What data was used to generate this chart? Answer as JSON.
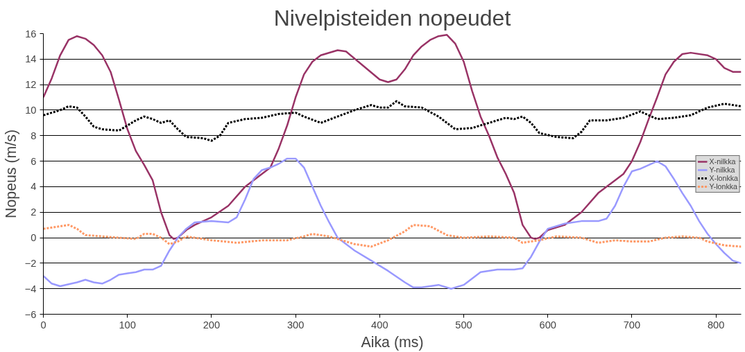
{
  "chart_data": {
    "type": "line",
    "title": "Nivelpisteiden nopeudet",
    "xlabel": "Aika (ms)",
    "ylabel": "Nopeus (m/s)",
    "xlim": [
      0,
      830
    ],
    "xticks": [
      0,
      100,
      200,
      300,
      400,
      500,
      600,
      700,
      800
    ],
    "ylim": [
      -6,
      16
    ],
    "yticks": [
      -6,
      -4,
      -2,
      0,
      2,
      4,
      6,
      8,
      10,
      12,
      14,
      16
    ],
    "grid": "y",
    "legend": "right",
    "series": [
      {
        "name": "X-nilkka",
        "color": "#993366",
        "line_style": "solid",
        "x": [
          0,
          10,
          20,
          30,
          40,
          50,
          60,
          70,
          80,
          90,
          100,
          110,
          120,
          130,
          140,
          150,
          155,
          160,
          170,
          180,
          200,
          220,
          240,
          260,
          270,
          280,
          290,
          300,
          310,
          320,
          330,
          350,
          360,
          380,
          400,
          410,
          420,
          430,
          440,
          450,
          460,
          470,
          480,
          490,
          500,
          510,
          520,
          530,
          540,
          550,
          560,
          570,
          580,
          585,
          590,
          600,
          620,
          640,
          660,
          680,
          690,
          700,
          710,
          720,
          730,
          740,
          750,
          760,
          770,
          790,
          800,
          810,
          820,
          830
        ],
        "values": [
          11,
          12.5,
          14.3,
          15.5,
          15.8,
          15.6,
          15.1,
          14.3,
          13,
          10.8,
          8.5,
          6.8,
          5.7,
          4.5,
          2,
          0.2,
          -0.1,
          0,
          0.6,
          1.0,
          1.6,
          2.5,
          4.0,
          5.0,
          5.5,
          7,
          8.8,
          11,
          12.8,
          13.8,
          14.3,
          14.7,
          14.6,
          13.5,
          12.4,
          12.2,
          12.4,
          13.2,
          14.3,
          15.0,
          15.5,
          15.8,
          15.9,
          15.2,
          13.8,
          11.5,
          9.5,
          8,
          6.3,
          5,
          3.5,
          1,
          0,
          -0.1,
          0,
          0.6,
          1.0,
          2.0,
          3.5,
          4.5,
          5.0,
          6.0,
          7.5,
          9.3,
          11.0,
          12.8,
          13.8,
          14.4,
          14.5,
          14.3,
          14.0,
          13.3,
          13.0,
          13.0
        ]
      },
      {
        "name": "Y-nilkka",
        "color": "#9999ff",
        "line_style": "solid",
        "x": [
          0,
          10,
          20,
          40,
          50,
          60,
          70,
          80,
          90,
          100,
          110,
          120,
          130,
          140,
          150,
          160,
          170,
          180,
          200,
          220,
          230,
          240,
          250,
          260,
          270,
          280,
          290,
          300,
          310,
          320,
          330,
          340,
          350,
          370,
          390,
          410,
          430,
          440,
          450,
          460,
          470,
          485,
          500,
          510,
          520,
          540,
          560,
          570,
          580,
          590,
          600,
          620,
          640,
          660,
          670,
          680,
          690,
          700,
          710,
          720,
          730,
          740,
          750,
          760,
          770,
          780,
          790,
          800,
          810,
          820,
          830
        ],
        "values": [
          -3,
          -3.6,
          -3.8,
          -3.5,
          -3.3,
          -3.5,
          -3.6,
          -3.3,
          -2.9,
          -2.8,
          -2.7,
          -2.5,
          -2.5,
          -2.2,
          -1,
          0,
          0.7,
          1.2,
          1.3,
          1.2,
          1.6,
          3,
          4.6,
          5.3,
          5.5,
          5.8,
          6.2,
          6.2,
          5.5,
          4,
          2.5,
          1.2,
          0,
          -1,
          -1.8,
          -2.6,
          -3.5,
          -3.9,
          -3.9,
          -3.8,
          -3.7,
          -4,
          -3.7,
          -3.2,
          -2.7,
          -2.5,
          -2.5,
          -2.4,
          -1.5,
          -0.3,
          0.7,
          1.1,
          1.3,
          1.3,
          1.5,
          2.5,
          4.0,
          5.2,
          5.4,
          5.7,
          6.0,
          5.6,
          4.6,
          3.5,
          2.5,
          1.3,
          0.3,
          -0.5,
          -1.2,
          -1.8,
          -2.0
        ]
      },
      {
        "name": "X-lonkka",
        "color": "#000000",
        "line_style": "dotted",
        "x": [
          0,
          10,
          20,
          30,
          40,
          50,
          60,
          70,
          90,
          100,
          110,
          120,
          130,
          140,
          150,
          160,
          170,
          190,
          200,
          210,
          220,
          240,
          260,
          280,
          300,
          310,
          330,
          350,
          370,
          390,
          400,
          410,
          420,
          430,
          450,
          470,
          490,
          510,
          530,
          550,
          560,
          570,
          580,
          590,
          610,
          630,
          640,
          650,
          670,
          690,
          710,
          730,
          750,
          770,
          790,
          810,
          830
        ],
        "values": [
          9.6,
          9.8,
          10.0,
          10.3,
          10.2,
          9.5,
          8.7,
          8.5,
          8.4,
          8.8,
          9.2,
          9.5,
          9.3,
          9.0,
          9.2,
          8.5,
          7.9,
          7.8,
          7.6,
          8.0,
          9.0,
          9.3,
          9.4,
          9.7,
          9.8,
          9.5,
          9.0,
          9.5,
          10.0,
          10.4,
          10.2,
          10.2,
          10.7,
          10.3,
          10.2,
          9.5,
          8.5,
          8.6,
          9.0,
          9.4,
          9.3,
          9.5,
          9.0,
          8.2,
          7.9,
          7.8,
          8.3,
          9.2,
          9.2,
          9.4,
          9.9,
          9.3,
          9.4,
          9.6,
          10.2,
          10.5,
          10.3
        ]
      },
      {
        "name": "Y-lonkka",
        "color": "#ff9966",
        "line_style": "dotted",
        "x": [
          0,
          20,
          30,
          40,
          50,
          70,
          90,
          110,
          120,
          130,
          140,
          150,
          160,
          170,
          180,
          200,
          230,
          260,
          290,
          310,
          320,
          340,
          370,
          390,
          410,
          430,
          440,
          460,
          480,
          500,
          530,
          560,
          570,
          590,
          610,
          640,
          660,
          680,
          700,
          720,
          740,
          760,
          780,
          790,
          810,
          830
        ],
        "values": [
          0.7,
          0.9,
          1.0,
          0.7,
          0.2,
          0.1,
          0.0,
          -0.1,
          0.3,
          0.3,
          0.0,
          -0.5,
          -0.3,
          0.1,
          0.0,
          -0.2,
          -0.4,
          -0.2,
          -0.2,
          0.1,
          0.3,
          0.1,
          -0.5,
          -0.7,
          -0.2,
          0.5,
          1.0,
          0.9,
          0.2,
          0.0,
          0.1,
          0.0,
          -0.4,
          -0.2,
          0.1,
          0.0,
          -0.4,
          -0.2,
          -0.3,
          -0.3,
          0.0,
          0.1,
          0.0,
          -0.3,
          -0.6,
          -0.7
        ]
      }
    ]
  }
}
